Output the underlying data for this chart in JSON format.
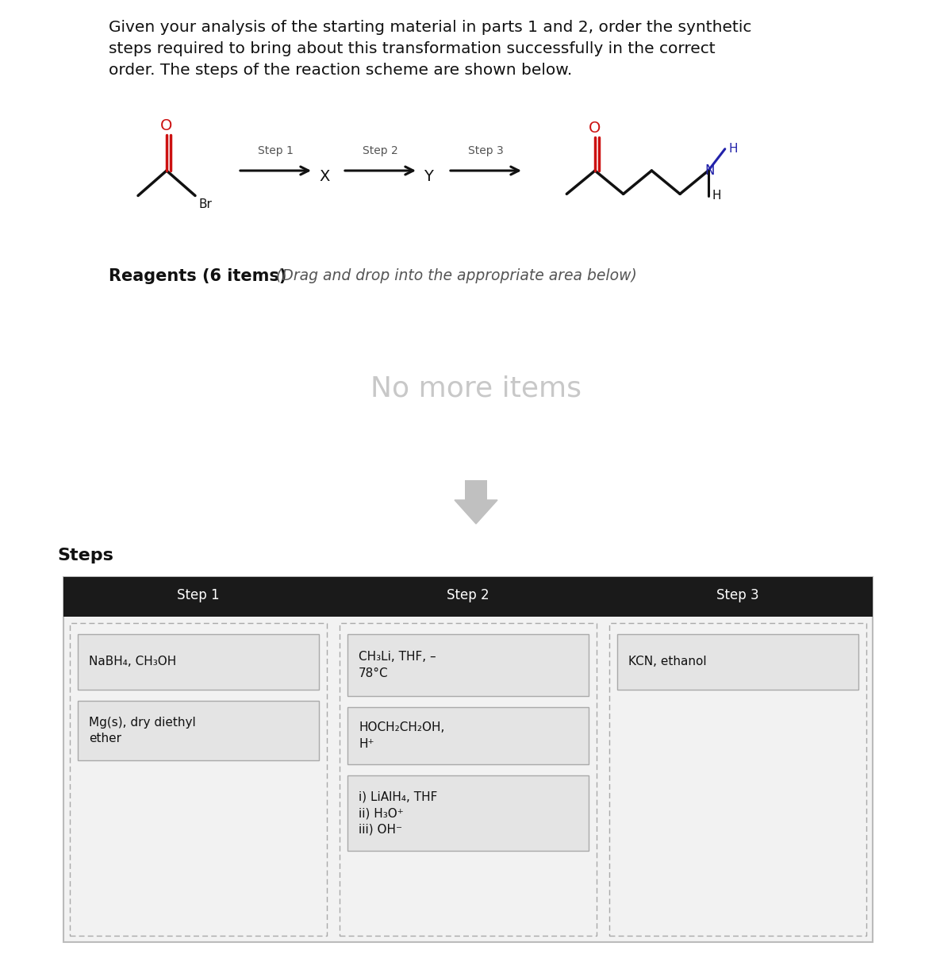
{
  "title_text": "Given your analysis of the starting material in parts 1 and 2, order the synthetic\nsteps required to bring about this transformation successfully in the correct\norder. The steps of the reaction scheme are shown below.",
  "reagents_label_bold": "Reagents (6 items)",
  "reagents_label_italic": " (Drag and drop into the appropriate area below)",
  "no_more_items_text": "No more items",
  "steps_label": "Steps",
  "step_headers": [
    "Step 1",
    "Step 2",
    "Step 3"
  ],
  "step1_reagents": [
    "NaBH₄, CH₃OH",
    "Mg(s), dry diethyl\nether"
  ],
  "step2_reagents": [
    "CH₃Li, THF, –\n78°C",
    "HOCH₂CH₂OH,\nH⁺",
    "i) LiAlH₄, THF\nii) H₃O⁺\niii) OH⁻"
  ],
  "step3_reagents": [
    "KCN, ethanol"
  ],
  "bg_color": "#ffffff",
  "header_bg": "#1a1a1a",
  "header_text_color": "#ffffff",
  "reagent_box_bg": "#e4e4e4",
  "dashed_border_color": "#aaaaaa",
  "outer_box_bg": "#f2f2f2",
  "outer_box_border": "#cccccc",
  "no_more_items_color": "#c8c8c8",
  "title_fontsize": 14.5,
  "step_header_fontsize": 12,
  "reagent_fontsize": 11
}
